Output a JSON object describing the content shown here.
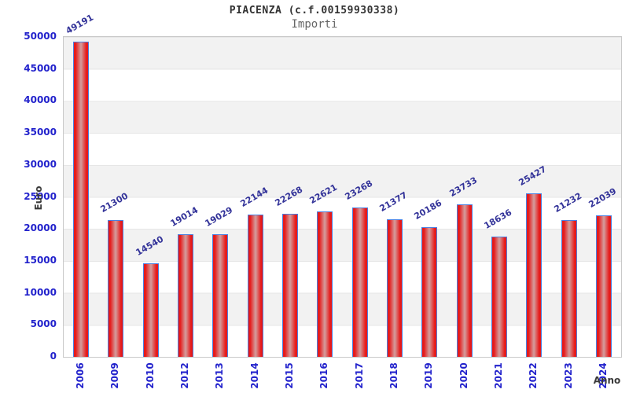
{
  "header": {
    "title": "PIACENZA (c.f.00159930338)",
    "subtitle": "Importi"
  },
  "chart_data": {
    "type": "bar",
    "title": "PIACENZA (c.f.00159930338)",
    "subtitle": "Importi",
    "categories": [
      "2006",
      "2009",
      "2010",
      "2012",
      "2013",
      "2014",
      "2015",
      "2016",
      "2017",
      "2018",
      "2019",
      "2020",
      "2021",
      "2022",
      "2023",
      "2024"
    ],
    "values": [
      49191,
      21300,
      14540,
      19014,
      19029,
      22144,
      22268,
      22621,
      23268,
      21377,
      20186,
      23733,
      18636,
      25427,
      21232,
      22039
    ],
    "xlabel": "Anno",
    "ylabel": "Euro",
    "ylim": [
      0,
      50000
    ],
    "ytick_step": 5000,
    "yticks": [
      0,
      5000,
      10000,
      15000,
      20000,
      25000,
      30000,
      35000,
      40000,
      45000,
      50000
    ],
    "legend_visible": false,
    "grid": "alternating-horizontal-bands",
    "bar_value_labels_rotation_deg": -30,
    "xtick_rotation_deg": -90,
    "colors": {
      "bar_edge_red": "#e61a1a",
      "bar_center": "#d49e9e",
      "bar_border_blue": "#4a7fe0",
      "tick_label_blue": "#2222cc",
      "value_label_navy": "#333399",
      "axis_title_gray": "#3a3a3a",
      "band_gray": "#f2f2f2",
      "band_white": "#ffffff",
      "plot_border": "#c9c9c9",
      "title_gray": "#333333",
      "subtitle_gray": "#666666"
    }
  }
}
